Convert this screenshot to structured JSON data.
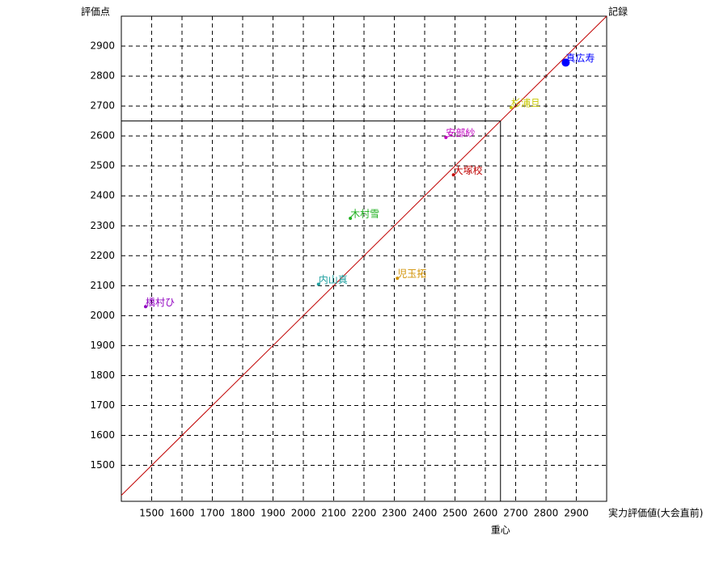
{
  "chart_data": {
    "type": "scatter",
    "y_label": "評価点",
    "x_label": "実力評価値(大会直前)",
    "xlim": [
      1400,
      3000
    ],
    "ylim": [
      1380,
      3000
    ],
    "xticks": [
      1500,
      1600,
      1700,
      1800,
      1900,
      2000,
      2100,
      2200,
      2300,
      2400,
      2500,
      2600,
      2700,
      2800,
      2900
    ],
    "yticks": [
      1500,
      1600,
      1700,
      1800,
      1900,
      2000,
      2100,
      2200,
      2300,
      2400,
      2500,
      2600,
      2700,
      2800,
      2900
    ],
    "grid": true,
    "reference_line": {
      "label": "記録",
      "color": "#c00000"
    },
    "centroid": {
      "label": "重心",
      "x": 2650,
      "y": 2650
    },
    "series": [
      {
        "name": "真広寿",
        "color": "#0000ff",
        "marker_size": 5,
        "x": [
          2865
        ],
        "values": [
          2845
        ]
      },
      {
        "name": "杉浦旦",
        "color": "#c8c800",
        "marker_size": 2,
        "x": [
          2685
        ],
        "values": [
          2695
        ]
      },
      {
        "name": "安部紗",
        "color": "#c000c0",
        "marker_size": 2,
        "x": [
          2470
        ],
        "values": [
          2595
        ]
      },
      {
        "name": "大塚校",
        "color": "#c00000",
        "marker_size": 2,
        "x": [
          2495
        ],
        "values": [
          2470
        ]
      },
      {
        "name": "木村雪",
        "color": "#20b020",
        "marker_size": 2,
        "x": [
          2155
        ],
        "values": [
          2325
        ]
      },
      {
        "name": "児玉拓",
        "color": "#d09000",
        "marker_size": 2,
        "x": [
          2310
        ],
        "values": [
          2125
        ]
      },
      {
        "name": "内山真",
        "color": "#20a0a0",
        "marker_size": 2,
        "x": [
          2050
        ],
        "values": [
          2105
        ]
      },
      {
        "name": "橋村ひ",
        "color": "#9000c0",
        "marker_size": 2,
        "x": [
          1480
        ],
        "values": [
          2030
        ]
      }
    ]
  }
}
